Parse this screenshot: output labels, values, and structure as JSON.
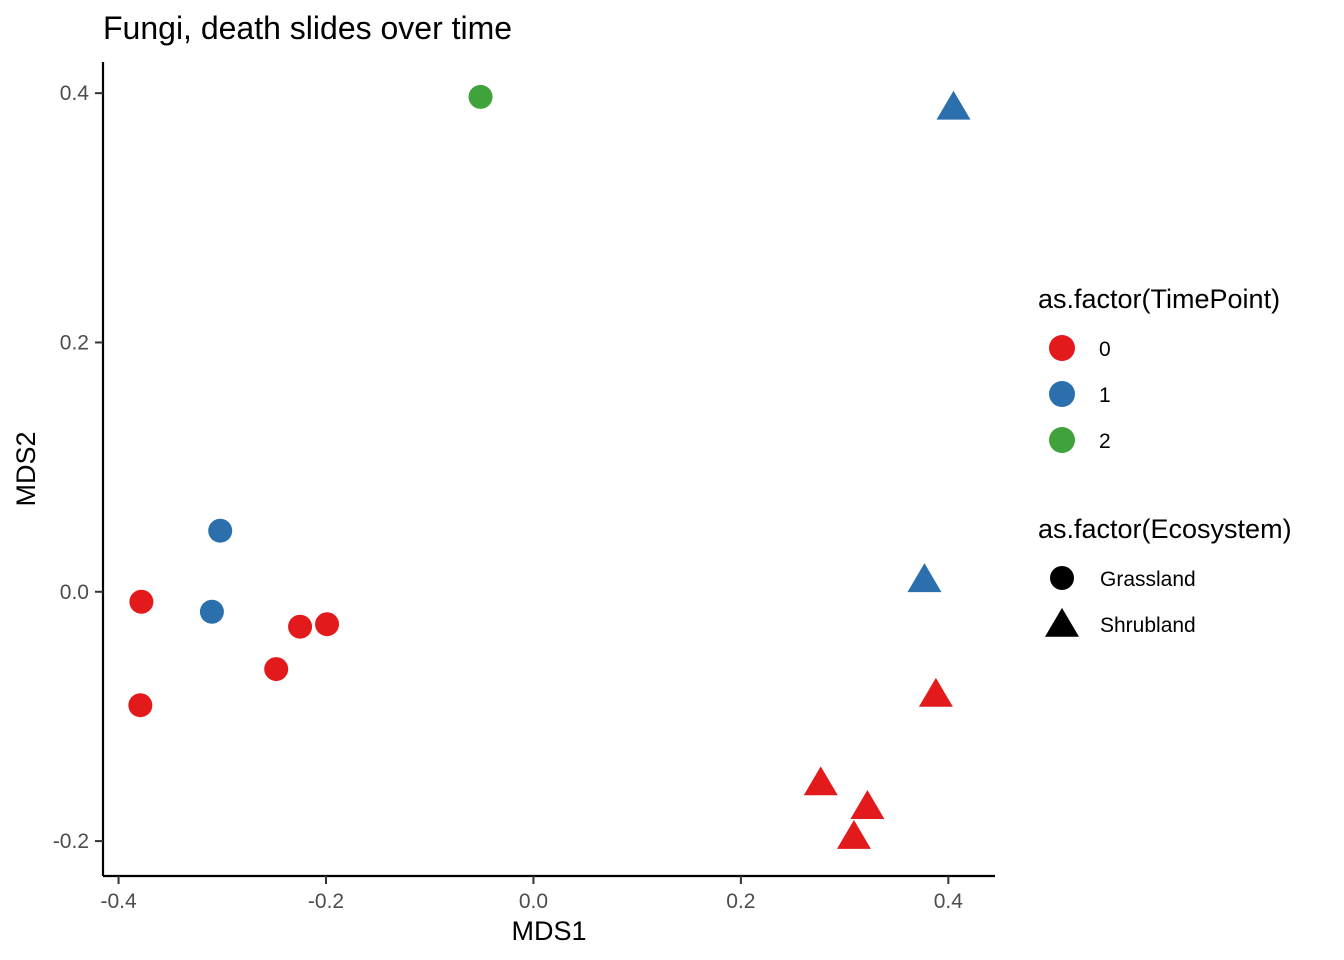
{
  "chart_data": {
    "type": "scatter",
    "title": "Fungi, death slides over time",
    "xlabel": "MDS1",
    "ylabel": "MDS2",
    "xlim": [
      -0.415,
      0.445
    ],
    "ylim": [
      -0.228,
      0.425
    ],
    "xticks": [
      -0.4,
      -0.2,
      0.0,
      0.2,
      0.4
    ],
    "xtick_labels": [
      "-0.4",
      "-0.2",
      "0.0",
      "0.2",
      "0.4"
    ],
    "yticks": [
      -0.2,
      0.0,
      0.2,
      0.4
    ],
    "ytick_labels": [
      "-0.2",
      "0.0",
      "0.2",
      "0.4"
    ],
    "grid": false,
    "legend_placement": "right",
    "colors": {
      "0": "#e31a1c",
      "1": "#2c6fad",
      "2": "#3fa23a"
    },
    "legends": [
      {
        "title": "as.factor(TimePoint)",
        "kind": "color",
        "items": [
          {
            "label": "0",
            "key": "0"
          },
          {
            "label": "1",
            "key": "1"
          },
          {
            "label": "2",
            "key": "2"
          }
        ]
      },
      {
        "title": "as.factor(Ecosystem)",
        "kind": "shape",
        "items": [
          {
            "label": "Grassland",
            "key": "circle"
          },
          {
            "label": "Shrubland",
            "key": "triangle"
          }
        ]
      }
    ],
    "points": [
      {
        "x": -0.051,
        "y": 0.397,
        "timepoint": "2",
        "ecosystem": "Grassland"
      },
      {
        "x": -0.302,
        "y": 0.049,
        "timepoint": "1",
        "ecosystem": "Grassland"
      },
      {
        "x": -0.31,
        "y": -0.016,
        "timepoint": "1",
        "ecosystem": "Grassland"
      },
      {
        "x": -0.378,
        "y": -0.008,
        "timepoint": "0",
        "ecosystem": "Grassland"
      },
      {
        "x": -0.225,
        "y": -0.028,
        "timepoint": "0",
        "ecosystem": "Grassland"
      },
      {
        "x": -0.199,
        "y": -0.026,
        "timepoint": "0",
        "ecosystem": "Grassland"
      },
      {
        "x": -0.248,
        "y": -0.062,
        "timepoint": "0",
        "ecosystem": "Grassland"
      },
      {
        "x": -0.379,
        "y": -0.091,
        "timepoint": "0",
        "ecosystem": "Grassland"
      },
      {
        "x": 0.405,
        "y": 0.389,
        "timepoint": "1",
        "ecosystem": "Shrubland"
      },
      {
        "x": 0.377,
        "y": 0.01,
        "timepoint": "1",
        "ecosystem": "Shrubland"
      },
      {
        "x": 0.388,
        "y": -0.082,
        "timepoint": "0",
        "ecosystem": "Shrubland"
      },
      {
        "x": 0.277,
        "y": -0.153,
        "timepoint": "0",
        "ecosystem": "Shrubland"
      },
      {
        "x": 0.322,
        "y": -0.172,
        "timepoint": "0",
        "ecosystem": "Shrubland"
      },
      {
        "x": 0.309,
        "y": -0.196,
        "timepoint": "0",
        "ecosystem": "Shrubland"
      }
    ]
  }
}
